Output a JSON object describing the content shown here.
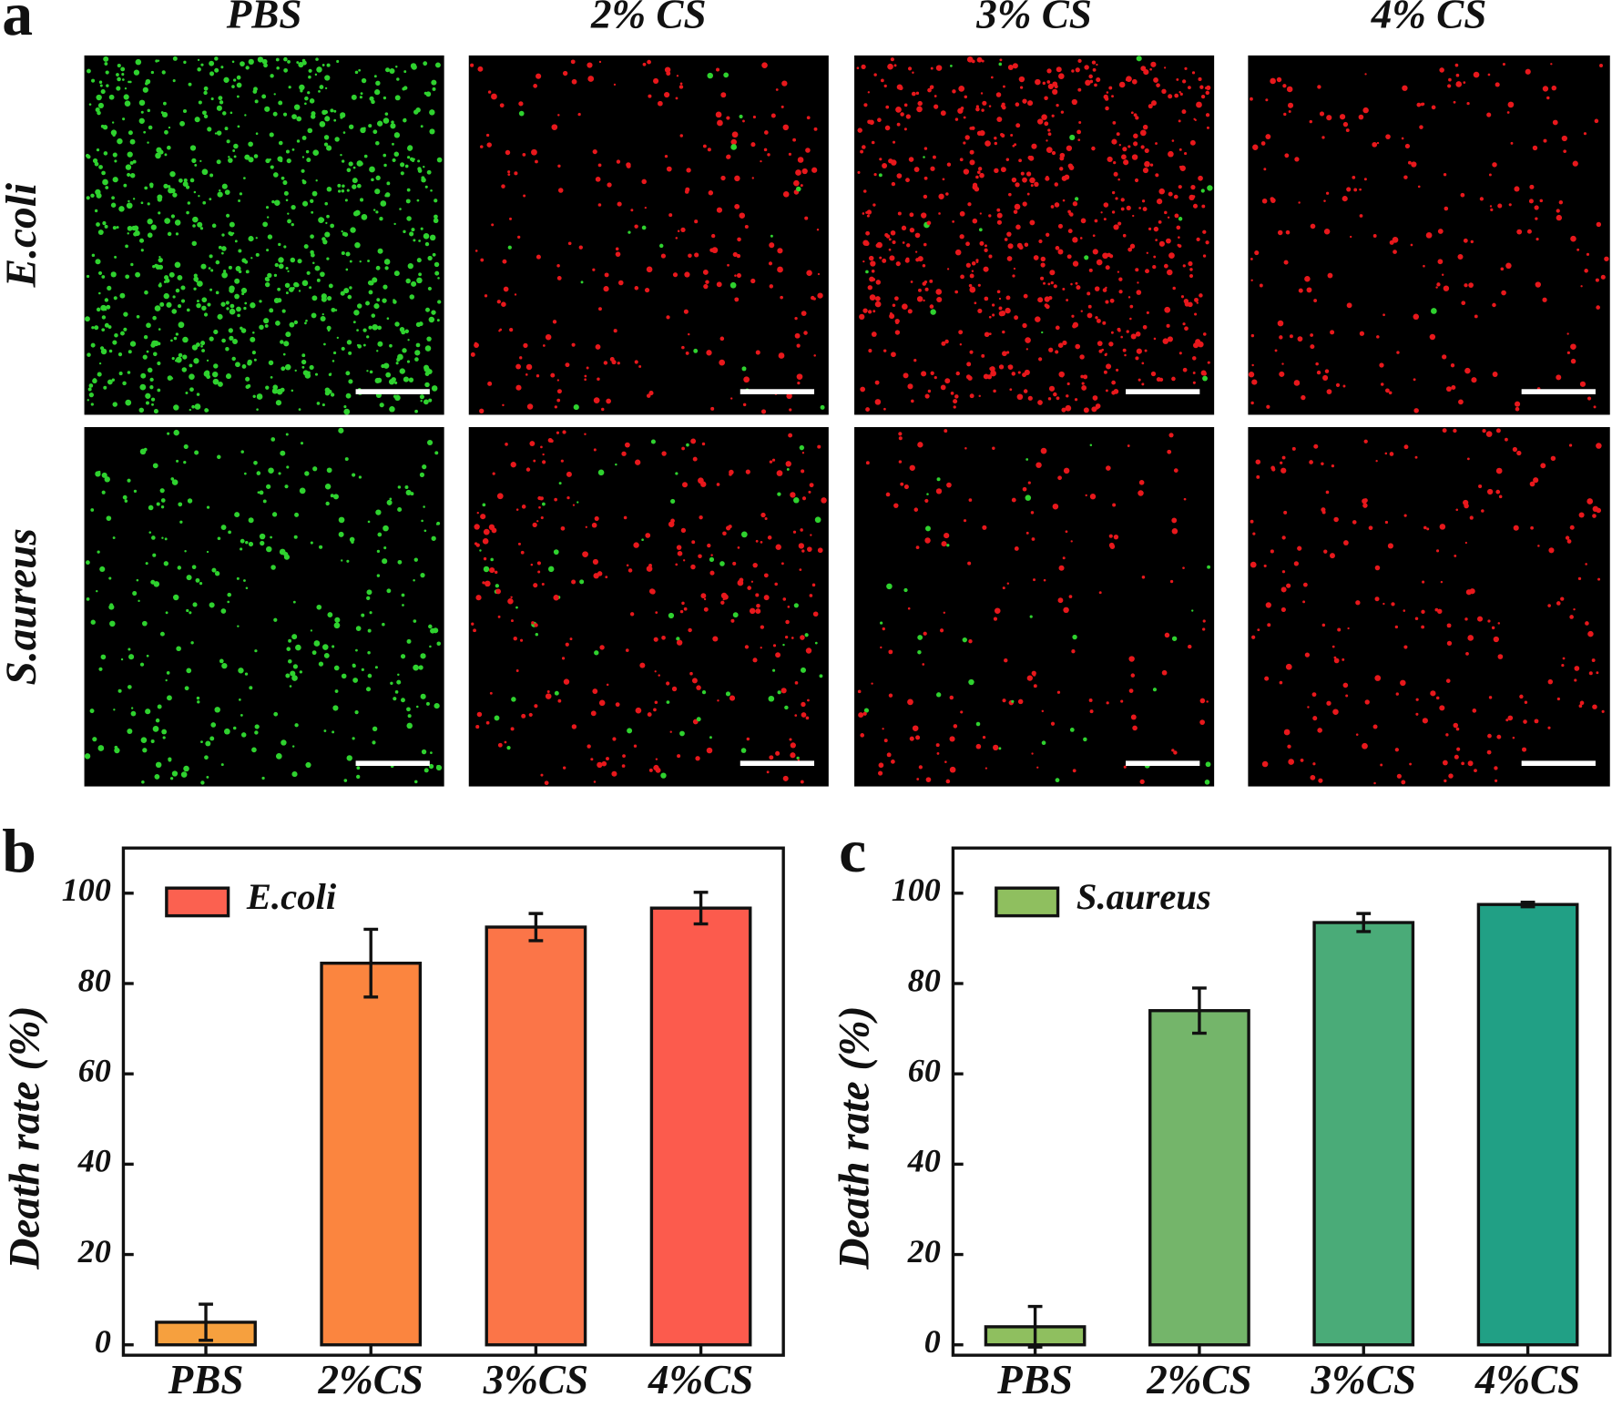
{
  "panel_a": {
    "label": "a",
    "columns": [
      "PBS",
      "2% CS",
      "3% CS",
      "4% CS"
    ],
    "rows": [
      "E.coli",
      "S.aureus"
    ]
  },
  "chart_data": [
    {
      "type": "bar",
      "panel_label": "b",
      "y_label": "Death rate (%)",
      "legend": "E.coli",
      "legend_color": "#fb6150",
      "categories": [
        "PBS",
        "2%CS",
        "3%CS",
        "4%CS"
      ],
      "values": [
        5,
        84.5,
        92.5,
        96.7
      ],
      "errors": [
        4,
        7.5,
        3,
        3.5
      ],
      "colors": [
        "#f6a03e",
        "#fb853f",
        "#fb7548",
        "#fc5b4d"
      ],
      "ylim": [
        -2.3,
        110
      ],
      "yticks": [
        0,
        20,
        40,
        60,
        80,
        100
      ]
    },
    {
      "type": "bar",
      "panel_label": "c",
      "y_label": "Death rate (%)",
      "legend": "S.aureus",
      "legend_color": "#8fbf5f",
      "categories": [
        "PBS",
        "2%CS",
        "3%CS",
        "4%CS"
      ],
      "values": [
        4,
        74,
        93.5,
        97.5
      ],
      "errors": [
        4.5,
        5,
        2,
        0.5
      ],
      "colors": [
        "#8fbf5f",
        "#74b56a",
        "#4aab78",
        "#21a085"
      ],
      "ylim": [
        -2.3,
        110
      ],
      "yticks": [
        0,
        20,
        40,
        60,
        80,
        100
      ]
    }
  ]
}
